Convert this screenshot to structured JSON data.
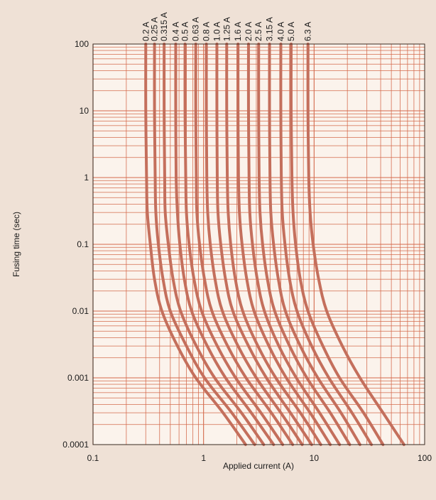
{
  "chart_data": {
    "type": "line",
    "title": "",
    "xlabel": "Applied current (A)",
    "ylabel": "Fusing time (sec)",
    "x_scale": "log",
    "y_scale": "log",
    "xlim": [
      0.1,
      100
    ],
    "ylim": [
      0.0001,
      100
    ],
    "x_ticks": [
      "0.1",
      "1",
      "10",
      "100"
    ],
    "y_ticks": [
      "0.0001",
      "0.001",
      "0.01",
      "0.1",
      "1",
      "10",
      "100"
    ],
    "grid": true,
    "colors": {
      "background": "#efe1d6",
      "plot_area": "#fbf3ec",
      "grid": "#d46a4c",
      "curve": "#c46f5c"
    },
    "series": [
      {
        "name": "0.2 A",
        "points": [
          [
            0.3,
            100
          ],
          [
            0.3,
            10
          ],
          [
            0.305,
            1
          ],
          [
            0.31,
            0.3
          ],
          [
            0.33,
            0.1
          ],
          [
            0.36,
            0.03
          ],
          [
            0.42,
            0.01
          ],
          [
            0.58,
            0.003
          ],
          [
            0.85,
            0.001
          ],
          [
            1.5,
            0.0003
          ],
          [
            2.4,
            0.0001
          ]
        ]
      },
      {
        "name": "0.25 A",
        "points": [
          [
            0.36,
            100
          ],
          [
            0.36,
            10
          ],
          [
            0.365,
            1
          ],
          [
            0.37,
            0.3
          ],
          [
            0.39,
            0.1
          ],
          [
            0.43,
            0.03
          ],
          [
            0.5,
            0.01
          ],
          [
            0.7,
            0.003
          ],
          [
            1.02,
            0.001
          ],
          [
            1.8,
            0.0003
          ],
          [
            2.9,
            0.0001
          ]
        ]
      },
      {
        "name": "0.315 A",
        "points": [
          [
            0.44,
            100
          ],
          [
            0.44,
            10
          ],
          [
            0.445,
            1
          ],
          [
            0.45,
            0.3
          ],
          [
            0.48,
            0.1
          ],
          [
            0.53,
            0.03
          ],
          [
            0.62,
            0.01
          ],
          [
            0.86,
            0.003
          ],
          [
            1.26,
            0.001
          ],
          [
            2.2,
            0.0003
          ],
          [
            3.5,
            0.0001
          ]
        ]
      },
      {
        "name": "0.4 A",
        "points": [
          [
            0.56,
            100
          ],
          [
            0.56,
            10
          ],
          [
            0.565,
            1
          ],
          [
            0.58,
            0.3
          ],
          [
            0.61,
            0.1
          ],
          [
            0.67,
            0.03
          ],
          [
            0.78,
            0.01
          ],
          [
            1.08,
            0.003
          ],
          [
            1.58,
            0.001
          ],
          [
            2.7,
            0.0003
          ],
          [
            4.3,
            0.0001
          ]
        ]
      },
      {
        "name": "0.5 A",
        "points": [
          [
            0.68,
            100
          ],
          [
            0.68,
            10
          ],
          [
            0.69,
            1
          ],
          [
            0.7,
            0.3
          ],
          [
            0.74,
            0.1
          ],
          [
            0.82,
            0.03
          ],
          [
            0.96,
            0.01
          ],
          [
            1.33,
            0.003
          ],
          [
            1.95,
            0.001
          ],
          [
            3.3,
            0.0003
          ],
          [
            5.2,
            0.0001
          ]
        ]
      },
      {
        "name": "0.63 A",
        "points": [
          [
            0.85,
            100
          ],
          [
            0.85,
            10
          ],
          [
            0.86,
            1
          ],
          [
            0.87,
            0.3
          ],
          [
            0.92,
            0.1
          ],
          [
            1.02,
            0.03
          ],
          [
            1.19,
            0.01
          ],
          [
            1.65,
            0.003
          ],
          [
            2.42,
            0.001
          ],
          [
            4.1,
            0.0003
          ],
          [
            6.4,
            0.0001
          ]
        ]
      },
      {
        "name": "0.8 A",
        "points": [
          [
            1.06,
            100
          ],
          [
            1.06,
            10
          ],
          [
            1.07,
            1
          ],
          [
            1.09,
            0.3
          ],
          [
            1.15,
            0.1
          ],
          [
            1.27,
            0.03
          ],
          [
            1.48,
            0.01
          ],
          [
            2.05,
            0.003
          ],
          [
            3.0,
            0.001
          ],
          [
            5.0,
            0.0003
          ],
          [
            7.8,
            0.0001
          ]
        ]
      },
      {
        "name": "1.0 A",
        "points": [
          [
            1.32,
            100
          ],
          [
            1.32,
            10
          ],
          [
            1.33,
            1
          ],
          [
            1.35,
            0.3
          ],
          [
            1.43,
            0.1
          ],
          [
            1.58,
            0.03
          ],
          [
            1.84,
            0.01
          ],
          [
            2.55,
            0.003
          ],
          [
            3.7,
            0.001
          ],
          [
            6.1,
            0.0003
          ],
          [
            9.5,
            0.0001
          ]
        ]
      },
      {
        "name": "1.25 A",
        "points": [
          [
            1.62,
            100
          ],
          [
            1.62,
            10
          ],
          [
            1.64,
            1
          ],
          [
            1.67,
            0.3
          ],
          [
            1.76,
            0.1
          ],
          [
            1.94,
            0.03
          ],
          [
            2.26,
            0.01
          ],
          [
            3.1,
            0.003
          ],
          [
            4.5,
            0.001
          ],
          [
            7.5,
            0.0003
          ],
          [
            11.5,
            0.0001
          ]
        ]
      },
      {
        "name": "1.6 A",
        "points": [
          [
            2.05,
            100
          ],
          [
            2.05,
            10
          ],
          [
            2.07,
            1
          ],
          [
            2.11,
            0.3
          ],
          [
            2.23,
            0.1
          ],
          [
            2.46,
            0.03
          ],
          [
            2.86,
            0.01
          ],
          [
            3.9,
            0.003
          ],
          [
            5.6,
            0.001
          ],
          [
            9.2,
            0.0003
          ],
          [
            14.0,
            0.0001
          ]
        ]
      },
      {
        "name": "2.0 A",
        "points": [
          [
            2.55,
            100
          ],
          [
            2.55,
            10
          ],
          [
            2.58,
            1
          ],
          [
            2.62,
            0.3
          ],
          [
            2.77,
            0.1
          ],
          [
            3.06,
            0.03
          ],
          [
            3.55,
            0.01
          ],
          [
            4.8,
            0.003
          ],
          [
            6.9,
            0.001
          ],
          [
            11.2,
            0.0003
          ],
          [
            17.0,
            0.0001
          ]
        ]
      },
      {
        "name": "2.5 A",
        "points": [
          [
            3.15,
            100
          ],
          [
            3.15,
            10
          ],
          [
            3.18,
            1
          ],
          [
            3.24,
            0.3
          ],
          [
            3.42,
            0.1
          ],
          [
            3.78,
            0.03
          ],
          [
            4.4,
            0.01
          ],
          [
            6.0,
            0.003
          ],
          [
            8.6,
            0.001
          ],
          [
            14.0,
            0.0003
          ],
          [
            21.0,
            0.0001
          ]
        ]
      },
      {
        "name": "3.15 A",
        "points": [
          [
            3.95,
            100
          ],
          [
            3.95,
            10
          ],
          [
            3.99,
            1
          ],
          [
            4.06,
            0.3
          ],
          [
            4.3,
            0.1
          ],
          [
            4.75,
            0.03
          ],
          [
            5.5,
            0.01
          ],
          [
            7.5,
            0.003
          ],
          [
            10.8,
            0.001
          ],
          [
            17.5,
            0.0003
          ],
          [
            26.0,
            0.0001
          ]
        ]
      },
      {
        "name": "4.0 A",
        "points": [
          [
            5.0,
            100
          ],
          [
            5.0,
            10
          ],
          [
            5.05,
            1
          ],
          [
            5.15,
            0.3
          ],
          [
            5.45,
            0.1
          ],
          [
            6.0,
            0.03
          ],
          [
            7.0,
            0.01
          ],
          [
            9.5,
            0.003
          ],
          [
            13.6,
            0.001
          ],
          [
            22.0,
            0.0003
          ],
          [
            33.0,
            0.0001
          ]
        ]
      },
      {
        "name": "5.0 A",
        "points": [
          [
            6.2,
            100
          ],
          [
            6.2,
            10
          ],
          [
            6.3,
            1
          ],
          [
            6.45,
            0.3
          ],
          [
            6.8,
            0.1
          ],
          [
            7.5,
            0.03
          ],
          [
            8.8,
            0.01
          ],
          [
            12.0,
            0.003
          ],
          [
            17.0,
            0.001
          ],
          [
            28.0,
            0.0003
          ],
          [
            42.0,
            0.0001
          ]
        ]
      },
      {
        "name": "6.3 A",
        "points": [
          [
            8.8,
            100
          ],
          [
            8.8,
            10
          ],
          [
            8.95,
            1
          ],
          [
            9.2,
            0.3
          ],
          [
            9.8,
            0.1
          ],
          [
            11.0,
            0.03
          ],
          [
            13.0,
            0.01
          ],
          [
            18.0,
            0.003
          ],
          [
            26.0,
            0.001
          ],
          [
            42.0,
            0.0003
          ],
          [
            65.0,
            0.0001
          ]
        ]
      }
    ]
  }
}
